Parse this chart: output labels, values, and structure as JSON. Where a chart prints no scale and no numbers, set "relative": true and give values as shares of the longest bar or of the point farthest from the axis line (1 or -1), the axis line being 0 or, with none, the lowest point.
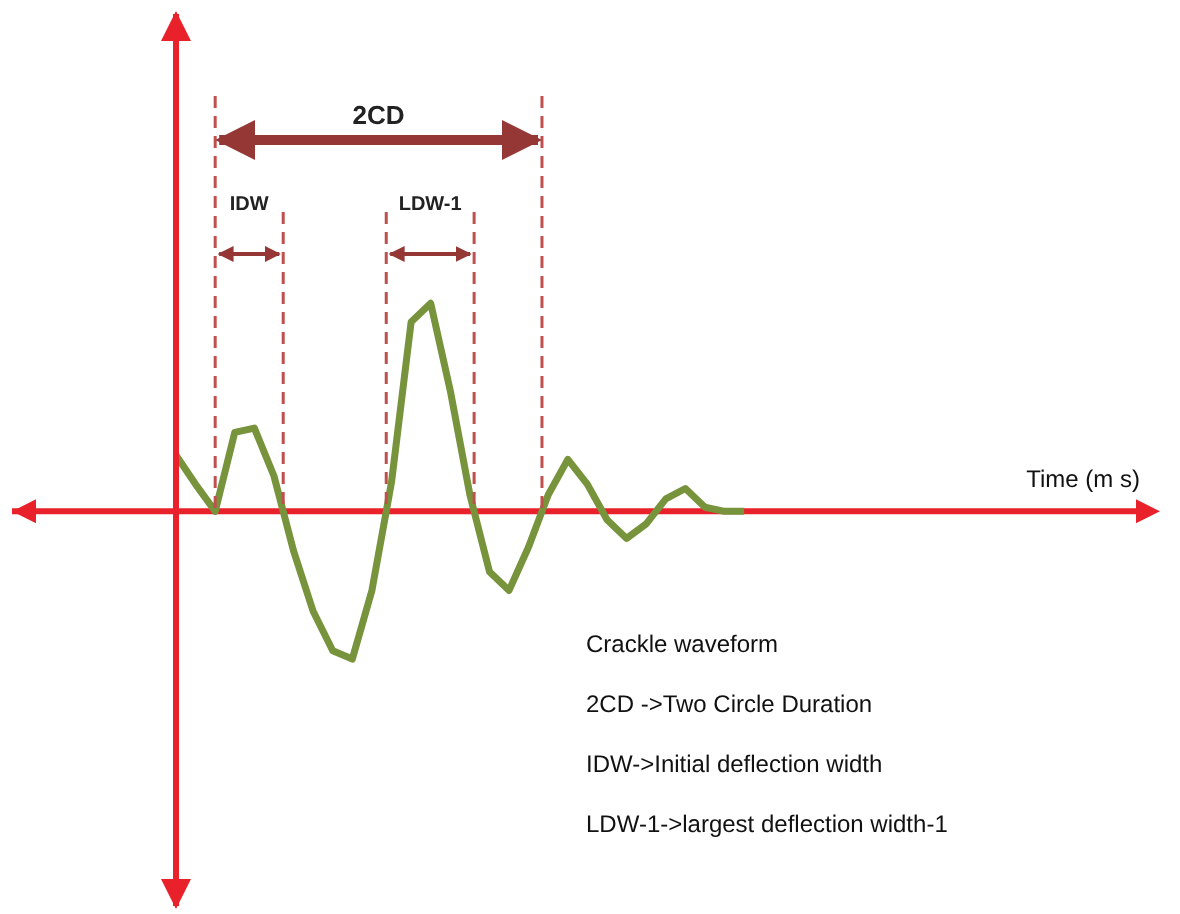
{
  "chart_data": {
    "type": "line",
    "relative": true,
    "xlabel": "Time (m s)",
    "categories": [
      null,
      null,
      null,
      null,
      null,
      null,
      null,
      null,
      null,
      null,
      null,
      null,
      null,
      null,
      null,
      null,
      null,
      null,
      null,
      null,
      null,
      null,
      null,
      null,
      null,
      null,
      null,
      null,
      null,
      null,
      null,
      null,
      null,
      null,
      null,
      null,
      null,
      null,
      null,
      null,
      null,
      null,
      null,
      null,
      null,
      null,
      null,
      null,
      null,
      null
    ],
    "series": [
      {
        "color": "#77933c",
        "values": [
          0.27,
          0.13,
          0,
          0.38,
          0.4,
          0.17,
          -0.19,
          -0.48,
          -0.67,
          -0.71,
          -0.38,
          0.14,
          0.91,
          1,
          0.58,
          0.08,
          -0.29,
          -0.38,
          -0.17,
          0.08,
          0.25,
          0.13,
          -0.04,
          -0.13,
          -0.06,
          0.06,
          0.11,
          0.02,
          0,
          0,
          null,
          null,
          null,
          null,
          null,
          null,
          null,
          null,
          null,
          null,
          null,
          null,
          null,
          null,
          null,
          null,
          null,
          null,
          null,
          null
        ]
      }
    ],
    "ref_lines": [
      {
        "axis": "y",
        "value": 0,
        "color": "#e8212a"
      }
    ],
    "marker": "none",
    "line_style": "solid",
    "grid": false,
    "legend": false,
    "annotations": [
      "2CD",
      "IDW",
      "LDW-1",
      "Crackle waveform",
      "2CD ->Two Circle Duration",
      "IDW->Initial deflection width",
      "LDW-1->largest deflection width-1"
    ]
  }
}
